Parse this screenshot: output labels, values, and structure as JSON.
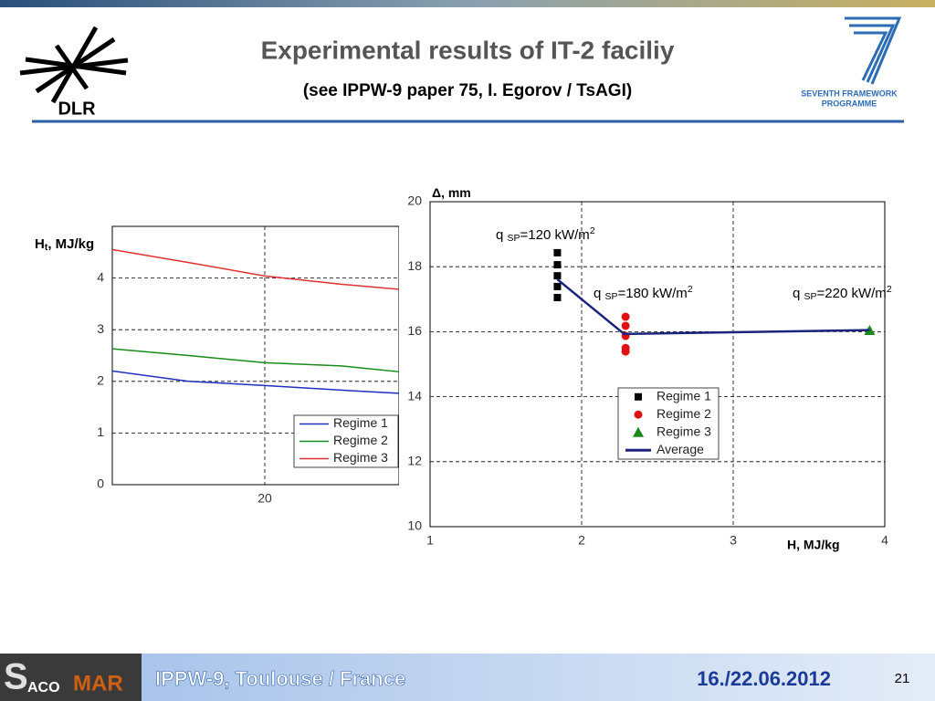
{
  "header": {
    "title": "Experimental results of IT-2 faciliy",
    "subtitle": "(see IPPW-9 paper 75, I. Egorov / TsAGI)",
    "left_logo": "DLR",
    "right_logo": [
      "SEVENTH FRAMEWORK",
      "PROGRAMME"
    ]
  },
  "footer": {
    "logo": [
      "S",
      "ACO",
      "MAR"
    ],
    "event": "IPPW-9, Toulouse / France",
    "date": "16./22.06.2012",
    "page": "21"
  },
  "chart_data": [
    {
      "type": "line",
      "ylabel": [
        "H",
        "t",
        ", MJ/kg"
      ],
      "x": [
        10,
        15,
        20,
        25,
        30
      ],
      "xlim": [
        10,
        30
      ],
      "xticks": [
        20
      ],
      "ylim": [
        0,
        5
      ],
      "yticks": [
        0,
        1,
        2,
        3,
        4
      ],
      "grid": true,
      "legend": "lower right",
      "series": [
        {
          "name": "Regime 1",
          "color": "#1f2fbf",
          "values": [
            2.2,
            2.0,
            1.92,
            1.83,
            1.75
          ]
        },
        {
          "name": "Regime 2",
          "color": "#1a8a1a",
          "values": [
            2.63,
            2.5,
            2.36,
            2.3,
            2.15
          ]
        },
        {
          "name": "Regime 3",
          "color": "#e03030",
          "values": [
            4.55,
            4.3,
            4.04,
            3.88,
            3.75
          ]
        }
      ]
    },
    {
      "type": "scatter",
      "ylabel": [
        "Δ, mm"
      ],
      "xlabel": "H, MJ/kg",
      "xlim": [
        1,
        4
      ],
      "xticks": [
        1,
        2,
        3,
        4
      ],
      "ylim": [
        10,
        20
      ],
      "yticks": [
        10,
        12,
        14,
        16,
        18,
        20
      ],
      "grid": true,
      "legend": "lower center",
      "series": [
        {
          "name": "Regime 1",
          "color": "#000000",
          "marker": "square",
          "x": [
            1.84,
            1.84,
            1.84,
            1.84,
            1.84
          ],
          "values": [
            18.43,
            18.06,
            17.72,
            17.39,
            17.05
          ]
        },
        {
          "name": "Regime 2",
          "color": "#e01010",
          "marker": "circle",
          "x": [
            2.29,
            2.29,
            2.29,
            2.29,
            2.29
          ],
          "values": [
            16.46,
            16.18,
            15.87,
            15.5,
            15.39
          ]
        },
        {
          "name": "Regime 3",
          "color": "#1a8a1a",
          "marker": "triangle",
          "x": [
            3.9
          ],
          "values": [
            16.04
          ]
        },
        {
          "name": "Average",
          "color": "#1a237e",
          "marker": "line",
          "x": [
            1.84,
            2.28,
            3.9
          ],
          "values": [
            17.61,
            15.93,
            16.05
          ]
        }
      ],
      "annotations": [
        [
          "q ",
          "SP",
          "=120 kW/m",
          "2"
        ],
        [
          "q ",
          "SP",
          "=180 kW/m",
          "2"
        ],
        [
          "q ",
          "SP",
          "=220 kW/m",
          "2"
        ]
      ]
    }
  ]
}
